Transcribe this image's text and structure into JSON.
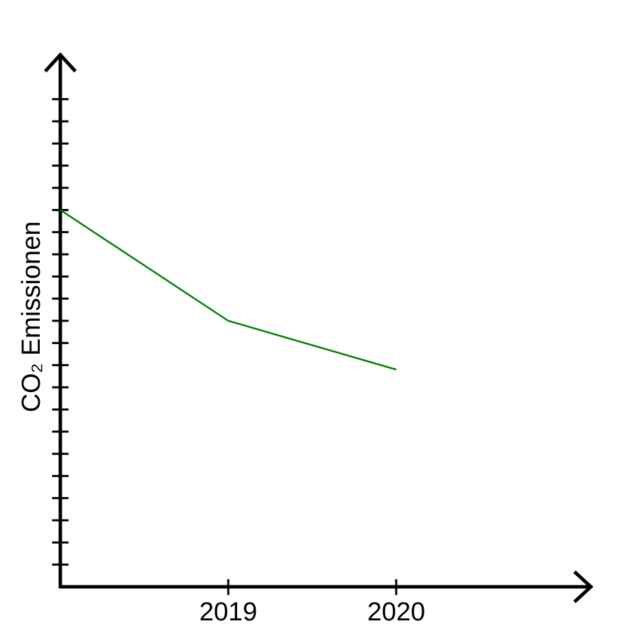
{
  "chart_data": {
    "type": "line",
    "y_label": "CO₂ Emissionen",
    "categories": [
      null,
      "2019",
      "2020"
    ],
    "series": [
      {
        "name": null,
        "color": "#008000",
        "values": [
          17,
          12,
          9.8
        ]
      }
    ],
    "ylim": [
      0,
      24
    ],
    "yticks": [
      1,
      2,
      3,
      4,
      5,
      6,
      7,
      8,
      9,
      10,
      11,
      12,
      13,
      14,
      15,
      16,
      17,
      18,
      19,
      20,
      21,
      22
    ]
  }
}
